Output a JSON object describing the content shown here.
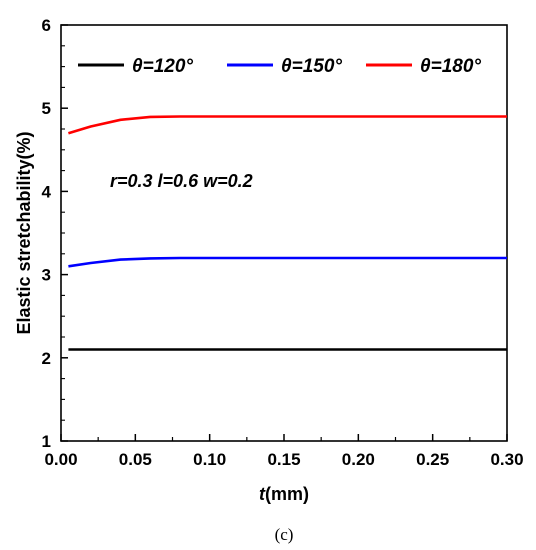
{
  "chart_data": {
    "type": "line",
    "xlabel_var": "t",
    "xlabel_unit": "(mm)",
    "ylabel": "Elastic stretchability(%)",
    "xlim": [
      0,
      0.3
    ],
    "ylim": [
      1,
      6
    ],
    "x_ticks": [
      "0.00",
      "0.05",
      "0.10",
      "0.15",
      "0.20",
      "0.25",
      "0.30"
    ],
    "y_ticks": [
      "1",
      "2",
      "3",
      "4",
      "5",
      "6"
    ],
    "grid": false,
    "legend_position": "top",
    "annotation": "r=0.3   l=0.6   w=0.2",
    "caption": "(c)",
    "series": [
      {
        "name": "θ=120°",
        "color": "#000000",
        "x": [
          0.005,
          0.02,
          0.04,
          0.06,
          0.08,
          0.1,
          0.15,
          0.2,
          0.25,
          0.3
        ],
        "y": [
          2.1,
          2.1,
          2.1,
          2.1,
          2.1,
          2.1,
          2.1,
          2.1,
          2.1,
          2.1
        ]
      },
      {
        "name": "θ=150°",
        "color": "#0000ff",
        "x": [
          0.005,
          0.02,
          0.04,
          0.06,
          0.08,
          0.1,
          0.15,
          0.2,
          0.25,
          0.3
        ],
        "y": [
          3.1,
          3.14,
          3.18,
          3.195,
          3.2,
          3.2,
          3.2,
          3.2,
          3.2,
          3.2
        ]
      },
      {
        "name": "θ=180°",
        "color": "#ff0000",
        "x": [
          0.005,
          0.02,
          0.04,
          0.06,
          0.08,
          0.1,
          0.15,
          0.2,
          0.25,
          0.3
        ],
        "y": [
          4.7,
          4.78,
          4.86,
          4.895,
          4.9,
          4.9,
          4.9,
          4.9,
          4.9,
          4.9
        ]
      }
    ]
  }
}
